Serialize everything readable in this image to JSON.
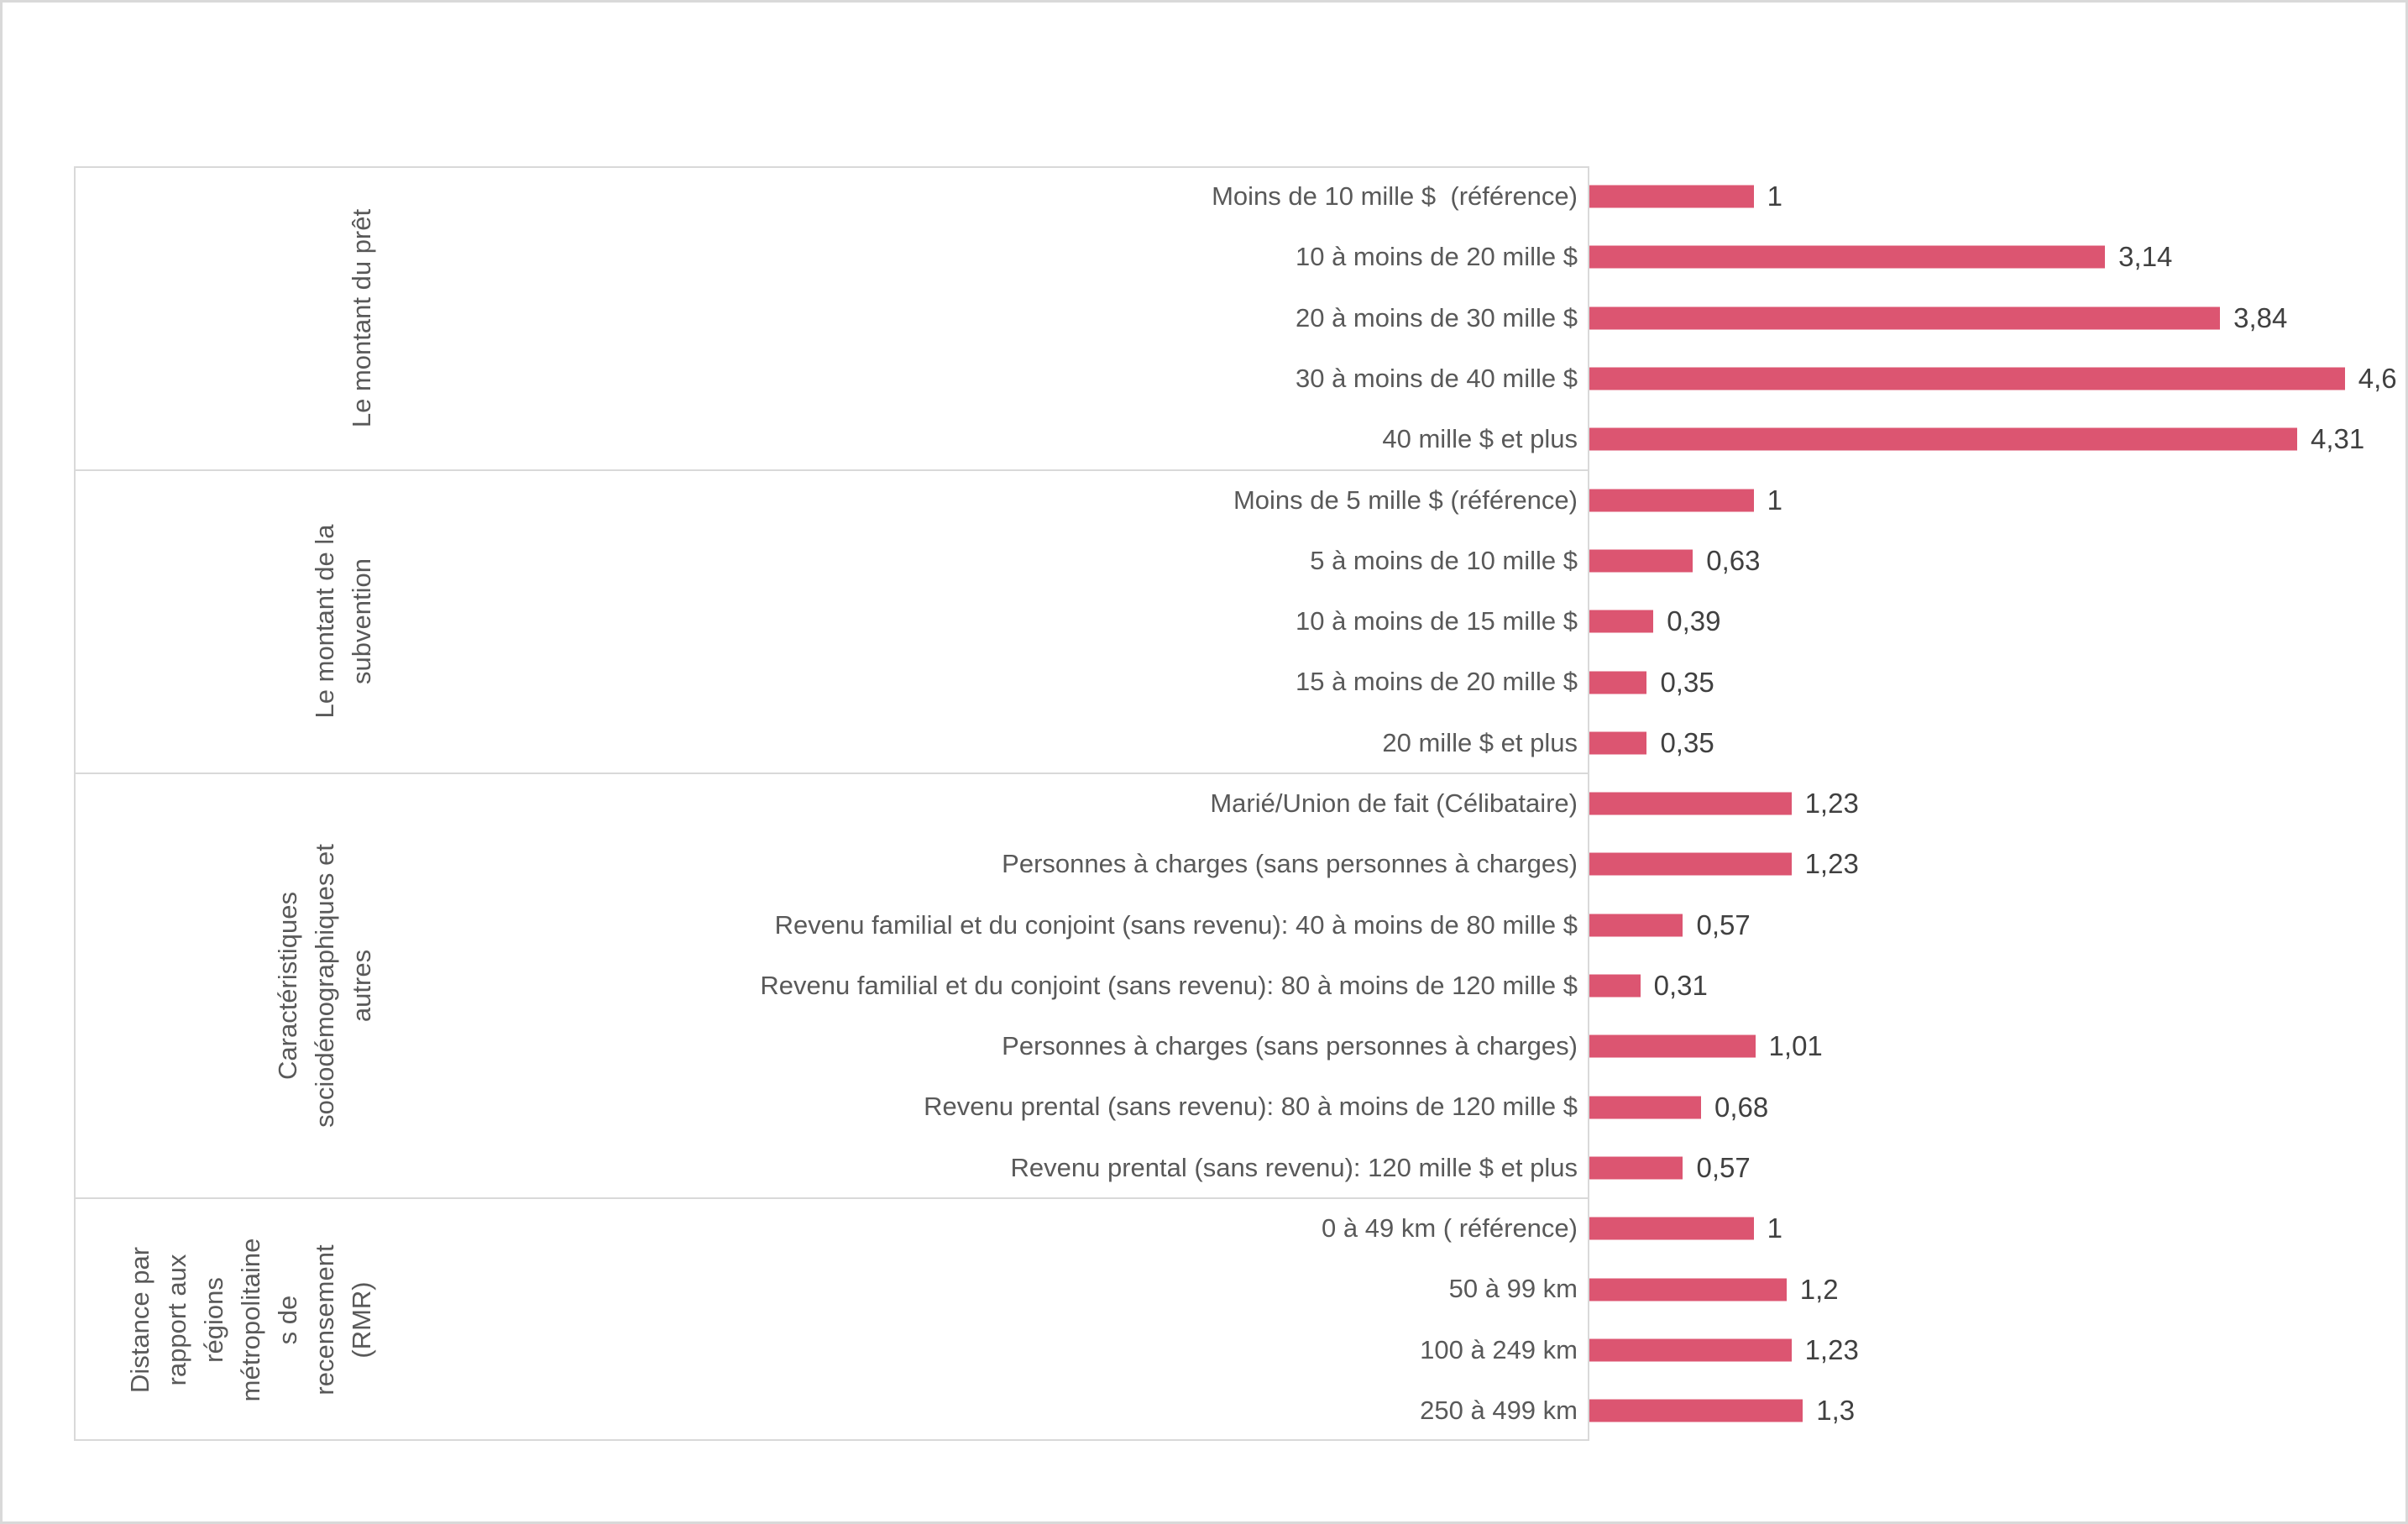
{
  "chart_data": {
    "type": "bar",
    "orientation": "horizontal",
    "title": "",
    "xlabel": "",
    "ylabel": "",
    "xlim": [
      0,
      4.8
    ],
    "grid": false,
    "legend": "none",
    "bar_color": "#DC5571",
    "line_color": "#d9d9d9",
    "category_text_color": "#595959",
    "value_text_color": "#404040",
    "decimal_separator": ",",
    "groups": [
      {
        "label": "Le montant du prêt",
        "label_lines": [
          "Le montant du prêt"
        ],
        "items": [
          {
            "label": "Moins de 10 mille $  (référence)",
            "value": 1,
            "value_label": "1"
          },
          {
            "label": "10 à moins de 20 mille $",
            "value": 3.14,
            "value_label": "3,14"
          },
          {
            "label": "20 à moins de 30 mille $",
            "value": 3.84,
            "value_label": "3,84"
          },
          {
            "label": "30 à moins de 40 mille $",
            "value": 4.6,
            "value_label": "4,6"
          },
          {
            "label": "40 mille $ et plus",
            "value": 4.31,
            "value_label": "4,31"
          }
        ]
      },
      {
        "label": "Le montant de la subvention",
        "label_lines": [
          "Le montant de la",
          "subvention"
        ],
        "items": [
          {
            "label": "Moins de 5 mille $ (référence)",
            "value": 1,
            "value_label": "1"
          },
          {
            "label": "5 à moins de 10 mille $",
            "value": 0.63,
            "value_label": "0,63"
          },
          {
            "label": "10 à moins de 15 mille $",
            "value": 0.39,
            "value_label": "0,39"
          },
          {
            "label": "15 à moins de 20 mille $",
            "value": 0.35,
            "value_label": "0,35"
          },
          {
            "label": "20 mille $ et plus",
            "value": 0.35,
            "value_label": "0,35"
          }
        ]
      },
      {
        "label": "Caractéristiques sociodémographiques et autres",
        "label_lines": [
          "Caractéristiques",
          "sociodémographiques et",
          "autres"
        ],
        "items": [
          {
            "label": "Marié/Union de fait (Célibataire)",
            "value": 1.23,
            "value_label": "1,23"
          },
          {
            "label": "Personnes à charges (sans personnes à charges)",
            "value": 1.23,
            "value_label": "1,23"
          },
          {
            "label": "Revenu familial et du conjoint (sans revenu): 40 à moins de 80 mille $",
            "value": 0.57,
            "value_label": "0,57"
          },
          {
            "label": "Revenu familial et du conjoint (sans revenu): 80 à moins de 120 mille $",
            "value": 0.31,
            "value_label": "0,31"
          },
          {
            "label": "Personnes à charges (sans personnes à charges)",
            "value": 1.01,
            "value_label": "1,01"
          },
          {
            "label": "Revenu prental (sans revenu): 80 à moins de 120 mille $",
            "value": 0.68,
            "value_label": "0,68"
          },
          {
            "label": "Revenu prental (sans revenu): 120 mille $ et plus",
            "value": 0.57,
            "value_label": "0,57"
          }
        ]
      },
      {
        "label": "Distance par rapport aux régions métropolitaines de recensement (RMR)",
        "label_lines": [
          "Distance par",
          "rapport aux",
          "régions",
          "métropolitaine",
          "s de",
          "recensement",
          "(RMR)"
        ],
        "items": [
          {
            "label": "0 à 49 km ( référence)",
            "value": 1,
            "value_label": "1"
          },
          {
            "label": "50 à 99 km",
            "value": 1.2,
            "value_label": "1,2"
          },
          {
            "label": "100 à 249 km",
            "value": 1.23,
            "value_label": "1,23"
          },
          {
            "label": "250 à 499 km",
            "value": 1.3,
            "value_label": "1,3"
          }
        ]
      }
    ]
  }
}
